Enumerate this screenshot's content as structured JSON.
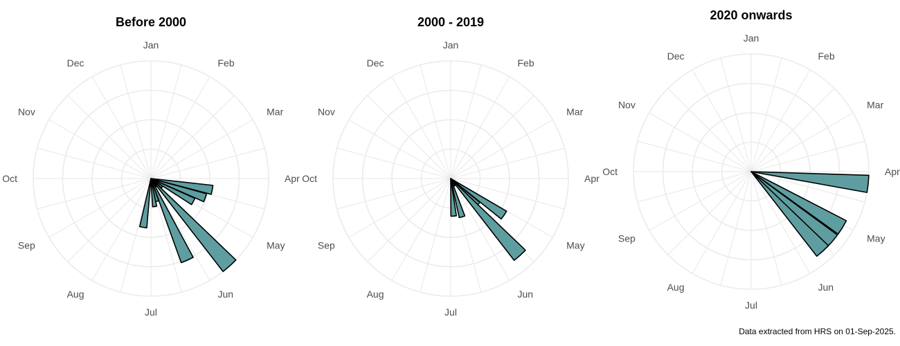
{
  "caption": "Data extracted from HRS on 01-Sep-2025.",
  "chart_data": [
    {
      "type": "bar",
      "polar": true,
      "title": "Before 2000",
      "categories": [
        "Jan",
        "Feb",
        "Mar",
        "Apr",
        "May",
        "Jun",
        "Jul",
        "Aug",
        "Sep",
        "Oct",
        "Nov",
        "Dec"
      ],
      "bars": [
        {
          "month": 4.35,
          "value": 0.53
        },
        {
          "month": 4.65,
          "value": 0.49
        },
        {
          "month": 4.95,
          "value": 0.41
        },
        {
          "month": 5.25,
          "value": 0.12
        },
        {
          "month": 5.6,
          "value": 1.0
        },
        {
          "month": 5.95,
          "value": 0.08
        },
        {
          "month": 6.2,
          "value": 0.76
        },
        {
          "month": 6.5,
          "value": 0.2
        },
        {
          "month": 6.75,
          "value": 0.24
        },
        {
          "month": 7.3,
          "value": 0.42
        }
      ],
      "rmax": 1.0,
      "color": "#5f9ea0"
    },
    {
      "type": "bar",
      "polar": true,
      "title": "2000 - 2019",
      "categories": [
        "Jan",
        "Feb",
        "Mar",
        "Apr",
        "May",
        "Jun",
        "Jul",
        "Aug",
        "Sep",
        "Oct",
        "Nov",
        "Dec"
      ],
      "bars": [
        {
          "month": 5.15,
          "value": 0.55
        },
        {
          "month": 5.45,
          "value": 0.32
        },
        {
          "month": 5.6,
          "value": 0.88
        },
        {
          "month": 6.05,
          "value": 0.07
        },
        {
          "month": 6.45,
          "value": 0.34
        },
        {
          "month": 6.85,
          "value": 0.32
        }
      ],
      "rmax": 1.0,
      "color": "#5f9ea0"
    },
    {
      "type": "bar",
      "polar": true,
      "title": "2020 onwards",
      "categories": [
        "Jan",
        "Feb",
        "Mar",
        "Apr",
        "May",
        "Jun",
        "Jul",
        "Aug",
        "Sep",
        "Oct",
        "Nov",
        "Dec"
      ],
      "bars": [
        {
          "month": 4.2,
          "value": 1.0
        },
        {
          "month": 5.05,
          "value": 0.91
        },
        {
          "month": 5.35,
          "value": 0.91
        },
        {
          "month": 5.6,
          "value": 0.91
        }
      ],
      "rmax": 1.0,
      "color": "#5f9ea0"
    }
  ]
}
